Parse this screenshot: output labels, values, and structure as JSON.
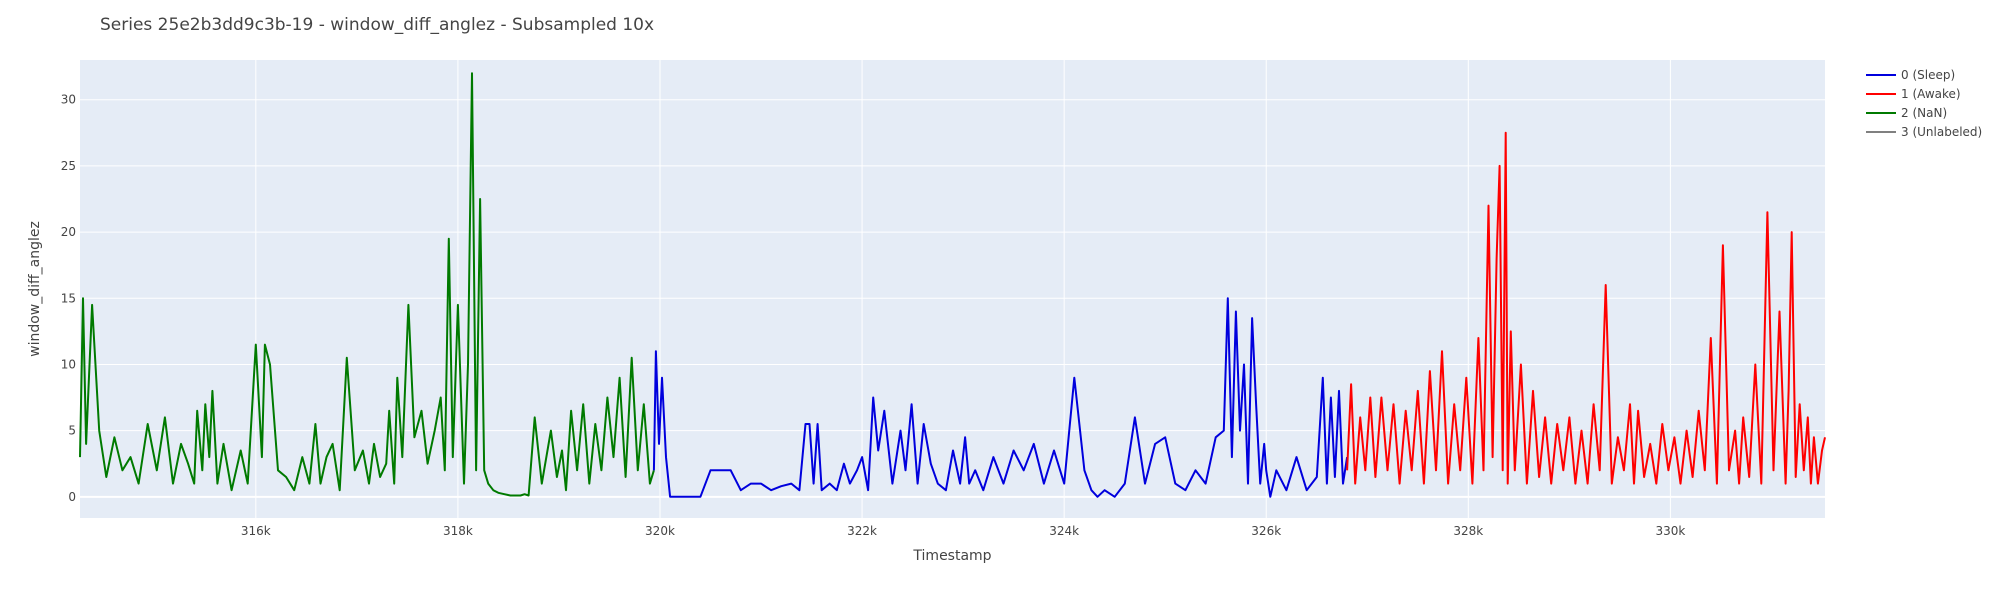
{
  "chart_data": {
    "type": "line",
    "title": "Series 25e2b3dd9c3b-19 - window_diff_anglez - Subsampled 10x",
    "xlabel": "Timestamp",
    "ylabel": "window_diff_anglez",
    "xlim": [
      314260,
      331530
    ],
    "ylim": [
      -1.6,
      33.0
    ],
    "x_ticks": [
      316000,
      318000,
      320000,
      322000,
      324000,
      326000,
      328000,
      330000
    ],
    "x_tick_labels": [
      "316k",
      "318k",
      "320k",
      "322k",
      "324k",
      "326k",
      "328k",
      "330k"
    ],
    "y_ticks": [
      0,
      5,
      10,
      15,
      20,
      25,
      30
    ],
    "y_tick_labels": [
      "0",
      "5",
      "10",
      "15",
      "20",
      "25",
      "30"
    ],
    "grid": true,
    "plot_background": "#e5ecf6",
    "grid_color": "#ffffff",
    "legend_position": "top-right, outside plot",
    "legend": [
      {
        "label": "0 (Sleep)",
        "color": "#0000dd"
      },
      {
        "label": "1 (Awake)",
        "color": "#ff0000"
      },
      {
        "label": "2 (NaN)",
        "color": "#007a00"
      },
      {
        "label": "3 (Unlabeled)",
        "color": "#808080"
      }
    ],
    "series": [
      {
        "name": "2 (NaN)",
        "color": "#007a00",
        "x": [
          314260,
          314290,
          314320,
          314380,
          314450,
          314520,
          314600,
          314680,
          314760,
          314840,
          314930,
          315020,
          315100,
          315180,
          315260,
          315330,
          315390,
          315420,
          315470,
          315500,
          315540,
          315570,
          315620,
          315680,
          315760,
          315850,
          315920,
          316000,
          316060,
          316090,
          316140,
          316220,
          316300,
          316380,
          316460,
          316530,
          316590,
          316640,
          316700,
          316760,
          316830,
          316900,
          316980,
          317060,
          317120,
          317170,
          317230,
          317290,
          317320,
          317370,
          317400,
          317450,
          317510,
          317570,
          317640,
          317700,
          317770,
          317830,
          317870,
          317910,
          317950,
          318000,
          318060,
          318100,
          318140,
          318180,
          318220,
          318260,
          318300,
          318350,
          318400,
          318460,
          318520,
          318580,
          318620,
          318660,
          318700,
          318760,
          318830,
          318920,
          318980,
          319030,
          319070,
          319120,
          319180,
          319240,
          319300,
          319360,
          319420,
          319480,
          319540,
          319600,
          319660,
          319720,
          319780,
          319840,
          319900,
          319940
        ],
        "y": [
          3.0,
          15.0,
          4.0,
          14.5,
          5.0,
          1.5,
          4.5,
          2.0,
          3.0,
          1.0,
          5.5,
          2.0,
          6.0,
          1.0,
          4.0,
          2.5,
          1.0,
          6.5,
          2.0,
          7.0,
          3.0,
          8.0,
          1.0,
          4.0,
          0.5,
          3.5,
          1.0,
          11.5,
          3.0,
          11.5,
          10.0,
          2.0,
          1.5,
          0.5,
          3.0,
          1.0,
          5.5,
          1.0,
          3.0,
          4.0,
          0.5,
          10.5,
          2.0,
          3.5,
          1.0,
          4.0,
          1.5,
          2.5,
          6.5,
          1.0,
          9.0,
          3.0,
          14.5,
          4.5,
          6.5,
          2.5,
          5.0,
          7.5,
          2.0,
          19.5,
          3.0,
          14.5,
          1.0,
          10.0,
          32.0,
          2.0,
          22.5,
          2.0,
          1.0,
          0.5,
          0.3,
          0.2,
          0.1,
          0.1,
          0.1,
          0.2,
          0.1,
          6.0,
          1.0,
          5.0,
          1.5,
          3.5,
          0.5,
          6.5,
          2.0,
          7.0,
          1.0,
          5.5,
          2.0,
          7.5,
          3.0,
          9.0,
          1.5,
          10.5,
          2.0,
          7.0,
          1.0,
          2.0
        ]
      },
      {
        "name": "0 (Sleep)",
        "color": "#0000dd",
        "x": [
          319940,
          319960,
          319990,
          320020,
          320060,
          320100,
          320200,
          320300,
          320400,
          320500,
          320600,
          320700,
          320800,
          320900,
          321000,
          321100,
          321200,
          321300,
          321380,
          321440,
          321480,
          321520,
          321560,
          321600,
          321680,
          321750,
          321820,
          321880,
          321950,
          322000,
          322060,
          322110,
          322160,
          322220,
          322300,
          322380,
          322430,
          322490,
          322550,
          322610,
          322680,
          322750,
          322830,
          322900,
          322970,
          323020,
          323060,
          323120,
          323200,
          323300,
          323400,
          323500,
          323600,
          323700,
          323800,
          323900,
          324000,
          324100,
          324200,
          324270,
          324330,
          324400,
          324500,
          324600,
          324700,
          324800,
          324900,
          325000,
          325100,
          325200,
          325300,
          325400,
          325500,
          325580,
          325620,
          325660,
          325700,
          325740,
          325780,
          325820,
          325860,
          325900,
          325940,
          325980,
          326000,
          326040,
          326100,
          326200,
          326300,
          326400,
          326500,
          326560,
          326600,
          326640,
          326680,
          326720,
          326760,
          326800
        ],
        "y": [
          2.0,
          11.0,
          4.0,
          9.0,
          3.0,
          0.0,
          0.0,
          0.0,
          0.0,
          2.0,
          2.0,
          2.0,
          0.5,
          1.0,
          1.0,
          0.5,
          0.8,
          1.0,
          0.5,
          5.5,
          5.5,
          1.0,
          5.5,
          0.5,
          1.0,
          0.5,
          2.5,
          1.0,
          2.0,
          3.0,
          0.5,
          7.5,
          3.5,
          6.5,
          1.0,
          5.0,
          2.0,
          7.0,
          1.0,
          5.5,
          2.5,
          1.0,
          0.5,
          3.5,
          1.0,
          4.5,
          1.0,
          2.0,
          0.5,
          3.0,
          1.0,
          3.5,
          2.0,
          4.0,
          1.0,
          3.5,
          1.0,
          9.0,
          2.0,
          0.5,
          0.0,
          0.5,
          0.0,
          1.0,
          6.0,
          1.0,
          4.0,
          4.5,
          1.0,
          0.5,
          2.0,
          1.0,
          4.5,
          5.0,
          15.0,
          3.0,
          14.0,
          5.0,
          10.0,
          1.0,
          13.5,
          7.0,
          1.0,
          4.0,
          2.0,
          0.0,
          2.0,
          0.5,
          3.0,
          0.5,
          1.5,
          9.0,
          1.0,
          7.5,
          1.5,
          8.0,
          1.0,
          3.0
        ]
      },
      {
        "name": "1 (Awake)",
        "color": "#ff0000",
        "x": [
          326800,
          326840,
          326880,
          326930,
          326980,
          327030,
          327080,
          327140,
          327200,
          327260,
          327320,
          327380,
          327440,
          327500,
          327560,
          327620,
          327680,
          327740,
          327800,
          327860,
          327920,
          327980,
          328040,
          328100,
          328150,
          328200,
          328240,
          328280,
          328310,
          328340,
          328370,
          328390,
          328420,
          328460,
          328520,
          328580,
          328640,
          328700,
          328760,
          328820,
          328880,
          328940,
          329000,
          329060,
          329120,
          329180,
          329240,
          329300,
          329360,
          329420,
          329480,
          329540,
          329600,
          329640,
          329680,
          329740,
          329800,
          329860,
          329920,
          329980,
          330040,
          330100,
          330160,
          330220,
          330280,
          330340,
          330400,
          330460,
          330520,
          330580,
          330640,
          330680,
          330720,
          330780,
          330840,
          330900,
          330960,
          331020,
          331080,
          331140,
          331170,
          331200,
          331240,
          331280,
          331320,
          331360,
          331390,
          331420,
          331460,
          331500,
          331530
        ],
        "y": [
          2.0,
          8.5,
          1.0,
          6.0,
          2.0,
          7.5,
          1.5,
          7.5,
          2.0,
          7.0,
          1.0,
          6.5,
          2.0,
          8.0,
          1.0,
          9.5,
          2.0,
          11.0,
          1.0,
          7.0,
          2.0,
          9.0,
          1.0,
          12.0,
          2.0,
          22.0,
          3.0,
          18.0,
          25.0,
          2.0,
          27.5,
          1.0,
          12.5,
          2.0,
          10.0,
          1.0,
          8.0,
          1.5,
          6.0,
          1.0,
          5.5,
          2.0,
          6.0,
          1.0,
          5.0,
          1.0,
          7.0,
          2.0,
          16.0,
          1.0,
          4.5,
          2.0,
          7.0,
          1.0,
          6.5,
          1.5,
          4.0,
          1.0,
          5.5,
          2.0,
          4.5,
          1.0,
          5.0,
          1.5,
          6.5,
          2.0,
          12.0,
          1.0,
          19.0,
          2.0,
          5.0,
          1.0,
          6.0,
          1.5,
          10.0,
          1.0,
          21.5,
          2.0,
          14.0,
          1.0,
          8.0,
          20.0,
          1.5,
          7.0,
          2.0,
          6.0,
          1.0,
          4.5,
          1.0,
          3.5,
          4.5
        ]
      }
    ]
  }
}
